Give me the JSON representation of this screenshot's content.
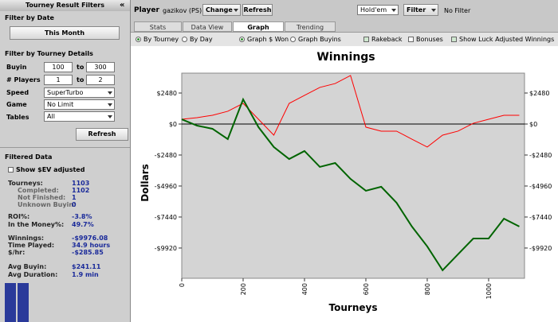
{
  "sidebar": {
    "title": "Tourney Result Filters",
    "collapse": "«",
    "date_heading": "Filter by Date",
    "date_button": "This Month",
    "details_heading": "Filter by Tourney Details",
    "buyin": {
      "label": "Buyin",
      "min": "100",
      "sep": "to",
      "max": "300"
    },
    "players": {
      "label": "# Players",
      "min": "1",
      "sep": "to",
      "max": "2"
    },
    "speed": {
      "label": "Speed",
      "value": "SuperTurbo"
    },
    "game": {
      "label": "Game",
      "value": "No Limit"
    },
    "tables": {
      "label": "Tables",
      "value": "All"
    },
    "refresh": "Refresh",
    "filtered_heading": "Filtered Data",
    "ev_checkbox": "Show $EV adjusted",
    "stats": [
      [
        "Tourneys:",
        "1103"
      ],
      [
        "Completed:",
        "1102"
      ],
      [
        "Not Finished:",
        "1"
      ],
      [
        "Unknown Buyin:",
        "0"
      ],
      [
        "ROI%:",
        "-3.8%"
      ],
      [
        "In the Money%:",
        "49.7%"
      ],
      [
        "Winnings:",
        "-$9976.08"
      ],
      [
        "Time Played:",
        "34.9 hours"
      ],
      [
        "$/hr:",
        "-$285.85"
      ],
      [
        "Avg Buyin:",
        "$241.11"
      ],
      [
        "Avg Duration:",
        "1.9 min"
      ]
    ]
  },
  "toolbar": {
    "player_label": "Player",
    "player": "gazikov (PS)",
    "change": "Change",
    "refresh": "Refresh",
    "game": "Hold'em",
    "filter": "Filter",
    "filter_value": "No Filter"
  },
  "tabs": [
    "Stats",
    "Data View",
    "Graph",
    "Trending"
  ],
  "options": [
    "By Tourney",
    "By Day",
    "Graph $ Won",
    "Graph Buyins",
    "Rakeback",
    "Bonuses",
    "Show Luck Adjusted Winnings"
  ],
  "chart_data": {
    "type": "line",
    "title": "Winnings",
    "x_label": "Tourneys",
    "y_label": "Dollars",
    "xlim": [
      0,
      1117
    ],
    "xticks": [
      0,
      200,
      400,
      600,
      800,
      1000
    ],
    "ylim": [
      -12340,
      4070
    ],
    "yticks": [
      {
        "value": 2480,
        "label": "$2480"
      },
      {
        "value": 0,
        "label": "$0"
      },
      {
        "value": -2480,
        "label": "-$2480"
      },
      {
        "value": -4960,
        "label": "-$4960"
      },
      {
        "value": -7440,
        "label": "-$7440"
      },
      {
        "value": -9920,
        "label": "-$9920"
      }
    ],
    "x": [
      0,
      50,
      100,
      150,
      200,
      250,
      300,
      350,
      400,
      450,
      500,
      550,
      600,
      650,
      700,
      750,
      800,
      850,
      900,
      950,
      1000,
      1050,
      1100
    ],
    "series": [
      {
        "color": "#ff0000",
        "values": [
          380,
          510,
          700,
          1020,
          1650,
          380,
          -890,
          1650,
          2290,
          2930,
          3240,
          3880,
          -250,
          -570,
          -570,
          -1210,
          -1840,
          -890,
          -570,
          60,
          380,
          700,
          700
        ]
      },
      {
        "color": "#006400",
        "values": [
          380,
          -130,
          -380,
          -1210,
          1970,
          -250,
          -1840,
          -2800,
          -2160,
          -3430,
          -3120,
          -4390,
          -5340,
          -5020,
          -6300,
          -8200,
          -9790,
          -11700,
          -10430,
          -9160,
          -9160,
          -7570,
          -8200
        ]
      }
    ]
  }
}
